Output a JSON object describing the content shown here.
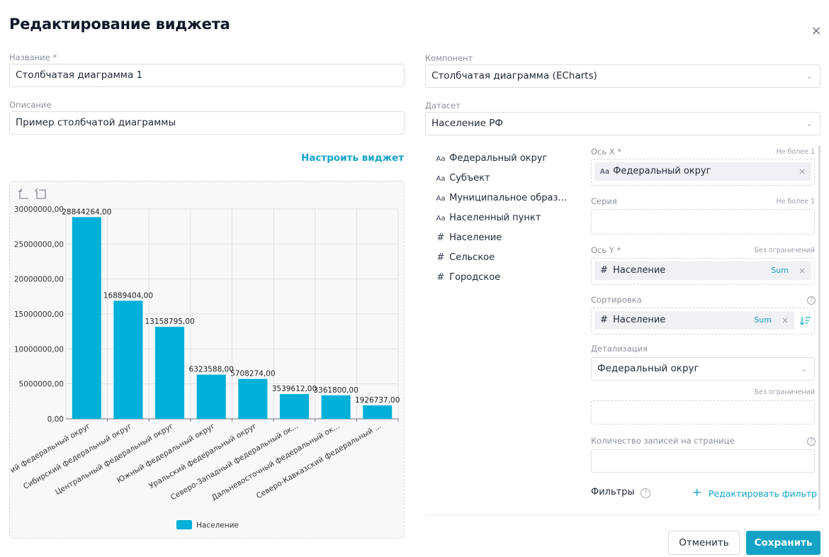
{
  "dialog": {
    "title": "Редактирование виджета",
    "close_icon": "×"
  },
  "form": {
    "name_label": "Название *",
    "name_value": "Столбчатая диаграмма 1",
    "description_label": "Описание",
    "description_value": "Пример столбчатой диаграммы",
    "component_label": "Компонент",
    "component_value": "Столбчатая диаграмма (ECharts)",
    "dataset_label": "Датасет",
    "dataset_value": "Население РФ",
    "configure_link": "Настроить виджет"
  },
  "fields": [
    {
      "icon": "text-type-icon",
      "glyph": "Aa",
      "label": "Федеральный округ"
    },
    {
      "icon": "text-type-icon",
      "glyph": "Aa",
      "label": "Субъект"
    },
    {
      "icon": "text-type-icon",
      "glyph": "Aa",
      "label": "Муниципальное образ..."
    },
    {
      "icon": "text-type-icon",
      "glyph": "Aa",
      "label": "Населенный пункт"
    },
    {
      "icon": "number-type-icon",
      "glyph": "#",
      "label": "Население"
    },
    {
      "icon": "number-type-icon",
      "glyph": "#",
      "label": "Сельское"
    },
    {
      "icon": "number-type-icon",
      "glyph": "#",
      "label": "Городское"
    }
  ],
  "zones": {
    "x_axis": {
      "label": "Ось X *",
      "hint": "Не более 1",
      "chip_glyph": "Aa",
      "chip_label": "Федеральный округ"
    },
    "series": {
      "label": "Серия",
      "hint": "Не более 1"
    },
    "y_axis": {
      "label": "Ось Y *",
      "hint": "Без ограничений",
      "chip_glyph": "#",
      "chip_label": "Население",
      "agg": "Sum"
    },
    "sort": {
      "label": "Сортировка",
      "chip_glyph": "#",
      "chip_label": "Население",
      "agg": "Sum"
    },
    "detail": {
      "label": "Детализация",
      "value": "Федеральный округ",
      "hint": "Без ограничений"
    },
    "page_size": {
      "label": "Количество записей на странице"
    },
    "filters": {
      "label": "Фильтры",
      "edit_link": "Редактировать фильтр",
      "plus": "+"
    }
  },
  "buttons": {
    "cancel": "Отменить",
    "save": "Сохранить"
  },
  "colors": {
    "accent": "#14a3c7",
    "bar": "#00b0d8"
  },
  "chart_data": {
    "type": "bar",
    "categories": [
      "Приволжский федеральный округ",
      "Сибирский федеральный округ",
      "Центральный федеральный округ",
      "Южный федеральный округ",
      "Уральский федеральный округ",
      "Северо-Западный федеральный ок...",
      "Дальневосточный федеральный ок...",
      "Северо-Кавказский федеральный ..."
    ],
    "tick_labels": [
      "ий федеральный округ",
      "Сибирский федеральный округ",
      "Центральный федеральный округ",
      "Южный федеральный округ",
      "Уральский федеральный округ",
      "Северо-Западный федеральный ок...",
      "Дальневосточный федеральный ок...",
      "Северо-Кавказский федеральный ..."
    ],
    "series": [
      {
        "name": "Население",
        "values": [
          28844264,
          16889404,
          13158795,
          6323588,
          5708274,
          3539612,
          3361800,
          1926737
        ],
        "labels": [
          "28844264,00",
          "16889404,00",
          "13158795,00",
          "6323588,00",
          "5708274,00",
          "3539612,00",
          "3361800,00",
          "1926737,00"
        ]
      }
    ],
    "y_ticks": [
      "0,00",
      "5000000,00",
      "10000000,00",
      "15000000,00",
      "20000000,00",
      "25000000,00",
      "30000000,00"
    ],
    "ylim": [
      0,
      30000000
    ],
    "grid": true,
    "legend": "bottom-center"
  }
}
